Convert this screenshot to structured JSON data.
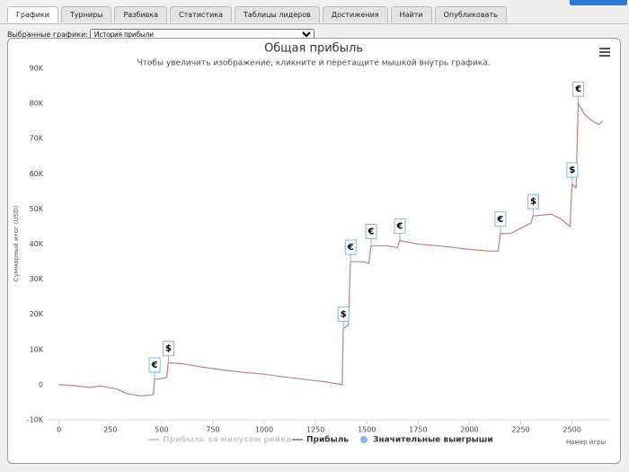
{
  "tabs": [
    "Графики",
    "Турниры",
    "Разбивка",
    "Статистика",
    "Таблицы лидеров",
    "Достижения",
    "Найти",
    "Опубликовать"
  ],
  "selector": {
    "label": "Выбранные графики:",
    "selected": "История прибыли"
  },
  "chart_data": {
    "type": "line",
    "title": "Общая прибыль",
    "subtitle": "Чтобы увеличить изображение, кликните и перетащите мышкой внутрь графика.",
    "y_label": "Суммарный итог (USD)",
    "x_label": "Номер игры",
    "xlim": [
      -60,
      2690
    ],
    "xticks": [
      0,
      250,
      500,
      750,
      1000,
      1250,
      1500,
      1750,
      2000,
      2250,
      2500
    ],
    "ylim": [
      -10000,
      90000
    ],
    "yticks": [
      {
        "value": -10000,
        "label": "-10K"
      },
      0,
      {
        "value": 10000,
        "label": "10K"
      },
      {
        "value": 20000,
        "label": "20K"
      },
      {
        "value": 30000,
        "label": "30K"
      },
      {
        "value": 40000,
        "label": "40K"
      },
      {
        "value": 50000,
        "label": "50K"
      },
      {
        "value": 60000,
        "label": "60K"
      },
      {
        "value": 70000,
        "label": "70K"
      },
      {
        "value": 80000,
        "label": "80K"
      },
      {
        "value": 90000,
        "label": "90K"
      }
    ],
    "grid": false,
    "hidden_series": [
      {
        "name": "Прибыль за минусом рейка",
        "color": "#cccccc"
      }
    ],
    "x": [
      0,
      80,
      150,
      200,
      280,
      330,
      400,
      460,
      465,
      525,
      532,
      600,
      700,
      800,
      900,
      1000,
      1100,
      1200,
      1300,
      1380,
      1385,
      1410,
      1420,
      1480,
      1510,
      1520,
      1600,
      1650,
      1660,
      1750,
      1850,
      2000,
      2100,
      2140,
      2150,
      2200,
      2300,
      2310,
      2400,
      2450,
      2490,
      2500,
      2520,
      2530,
      2560,
      2600,
      2630,
      2650
    ],
    "series": [
      {
        "name": "Прибыль",
        "color": "#c08080",
        "values": [
          0,
          -300,
          -800,
          -400,
          -1200,
          -2500,
          -3200,
          -2800,
          1500,
          2000,
          6200,
          6000,
          5000,
          4200,
          3500,
          3000,
          2200,
          1500,
          800,
          0,
          16000,
          17000,
          35000,
          35000,
          34500,
          39500,
          39500,
          39000,
          41000,
          40000,
          39500,
          38500,
          38000,
          38000,
          43000,
          43000,
          46000,
          48000,
          48500,
          47000,
          45000,
          57000,
          56000,
          80000,
          77000,
          75000,
          74000,
          75000
        ]
      },
      {
        "name": "Значительные выигрыши",
        "type": "scatter",
        "color": "#7cb5ec",
        "x": [
          466,
          533,
          1386,
          1421,
          1521,
          1661,
          2151,
          2311,
          2501,
          2531
        ],
        "values": [
          1500,
          6200,
          16000,
          35000,
          39500,
          41000,
          43000,
          48000,
          57000,
          80000
        ],
        "labels": [
          "€",
          "$",
          "$",
          "€",
          "€",
          "€",
          "€",
          "$",
          "$",
          "€"
        ]
      }
    ]
  }
}
